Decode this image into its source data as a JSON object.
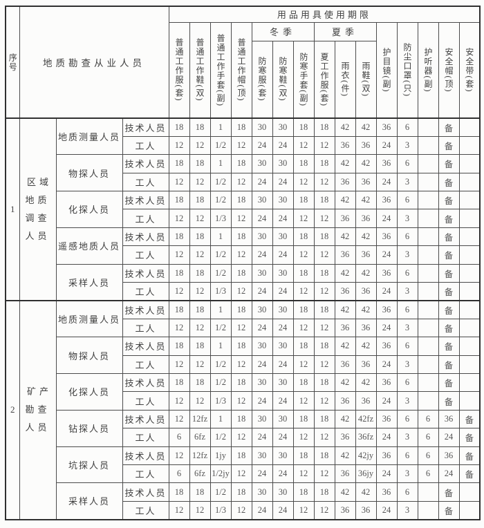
{
  "table": {
    "header": {
      "serial": "序号",
      "personnel": "地质勘查从业人员",
      "usage_title": "用品用具使用期限",
      "plain_left_cols": [
        "普通工作服(套)",
        "普通工作鞋(双)",
        "普通工作手套(副)",
        "普通工作帽(顶)"
      ],
      "winter": {
        "label": "冬季",
        "cols": [
          "防寒服(套)",
          "防寒鞋(双)",
          "防寒手套(副)"
        ]
      },
      "summer": {
        "label": "夏季",
        "cols": [
          "夏工作服(套)",
          "雨衣(件)",
          "雨鞋(双)"
        ]
      },
      "plain_right_cols": [
        "护目镜(副)",
        "防尘口罩(只)",
        "护听器(副)",
        "安全帽(顶)",
        "安全带(套)"
      ]
    },
    "colors": {
      "line": "#4a4a4a",
      "outer_line": "#2f2f2f",
      "paper": "#fcfcfb",
      "text": "#3f3f3f"
    },
    "sections": [
      {
        "no": "1",
        "group": "区域\n地质\n调查\n人员",
        "subcategories": [
          {
            "name": "地质测量人员",
            "rows": [
              {
                "type": "技术人员",
                "values": [
                  "18",
                  "18",
                  "1",
                  "18",
                  "30",
                  "30",
                  "18",
                  "18",
                  "42",
                  "42",
                  "36",
                  "6",
                  "",
                  "备",
                  ""
                ]
              },
              {
                "type": "工人",
                "values": [
                  "12",
                  "12",
                  "1/2",
                  "12",
                  "24",
                  "24",
                  "12",
                  "12",
                  "36",
                  "36",
                  "24",
                  "3",
                  "",
                  "备",
                  ""
                ]
              }
            ]
          },
          {
            "name": "物探人员",
            "rows": [
              {
                "type": "技术人员",
                "values": [
                  "18",
                  "18",
                  "1",
                  "18",
                  "30",
                  "30",
                  "18",
                  "18",
                  "42",
                  "42",
                  "36",
                  "6",
                  "",
                  "备",
                  ""
                ]
              },
              {
                "type": "工人",
                "values": [
                  "12",
                  "12",
                  "1/2",
                  "12",
                  "24",
                  "24",
                  "12",
                  "12",
                  "36",
                  "36",
                  "24",
                  "3",
                  "",
                  "备",
                  ""
                ]
              }
            ]
          },
          {
            "name": "化探人员",
            "rows": [
              {
                "type": "技术人员",
                "values": [
                  "18",
                  "18",
                  "1/2",
                  "18",
                  "30",
                  "30",
                  "18",
                  "18",
                  "42",
                  "42",
                  "36",
                  "6",
                  "",
                  "备",
                  ""
                ]
              },
              {
                "type": "工人",
                "values": [
                  "12",
                  "12",
                  "1/3",
                  "12",
                  "24",
                  "24",
                  "12",
                  "12",
                  "36",
                  "36",
                  "24",
                  "3",
                  "",
                  "备",
                  ""
                ]
              }
            ]
          },
          {
            "name": "遥感地质人员",
            "rows": [
              {
                "type": "技术人员",
                "values": [
                  "18",
                  "18",
                  "1",
                  "18",
                  "30",
                  "30",
                  "18",
                  "18",
                  "42",
                  "42",
                  "36",
                  "6",
                  "",
                  "备",
                  ""
                ]
              },
              {
                "type": "工人",
                "values": [
                  "12",
                  "12",
                  "1/2",
                  "12",
                  "24",
                  "24",
                  "12",
                  "12",
                  "36",
                  "36",
                  "24",
                  "3",
                  "",
                  "备",
                  ""
                ]
              }
            ]
          },
          {
            "name": "采样人员",
            "rows": [
              {
                "type": "技术人员",
                "values": [
                  "18",
                  "18",
                  "1/2",
                  "18",
                  "30",
                  "30",
                  "18",
                  "18",
                  "42",
                  "42",
                  "36",
                  "6",
                  "",
                  "备",
                  ""
                ]
              },
              {
                "type": "工人",
                "values": [
                  "12",
                  "12",
                  "1/3",
                  "12",
                  "24",
                  "24",
                  "12",
                  "12",
                  "36",
                  "36",
                  "24",
                  "3",
                  "",
                  "备",
                  ""
                ]
              }
            ]
          }
        ]
      },
      {
        "no": "2",
        "group": "矿产\n勘查\n人员",
        "subcategories": [
          {
            "name": "地质测量人员",
            "rows": [
              {
                "type": "技术人员",
                "values": [
                  "18",
                  "18",
                  "1",
                  "18",
                  "30",
                  "30",
                  "18",
                  "18",
                  "42",
                  "42",
                  "36",
                  "6",
                  "",
                  "备",
                  ""
                ]
              },
              {
                "type": "工人",
                "values": [
                  "12",
                  "12",
                  "1/2",
                  "12",
                  "24",
                  "24",
                  "12",
                  "12",
                  "36",
                  "36",
                  "24",
                  "3",
                  "",
                  "备",
                  ""
                ]
              }
            ]
          },
          {
            "name": "物探人员",
            "rows": [
              {
                "type": "技术人员",
                "values": [
                  "18",
                  "18",
                  "1",
                  "18",
                  "30",
                  "30",
                  "18",
                  "18",
                  "42",
                  "42",
                  "36",
                  "6",
                  "",
                  "备",
                  ""
                ]
              },
              {
                "type": "工人",
                "values": [
                  "12",
                  "12",
                  "1/2",
                  "12",
                  "24",
                  "24",
                  "12",
                  "12",
                  "36",
                  "36",
                  "24",
                  "3",
                  "",
                  "备",
                  ""
                ]
              }
            ]
          },
          {
            "name": "化探人员",
            "rows": [
              {
                "type": "技术人员",
                "values": [
                  "18",
                  "18",
                  "1/2",
                  "18",
                  "30",
                  "30",
                  "18",
                  "18",
                  "42",
                  "42",
                  "36",
                  "6",
                  "",
                  "备",
                  ""
                ]
              },
              {
                "type": "工人",
                "values": [
                  "12",
                  "12",
                  "1/3",
                  "12",
                  "24",
                  "24",
                  "12",
                  "12",
                  "36",
                  "36",
                  "24",
                  "3",
                  "",
                  "备",
                  ""
                ]
              }
            ]
          },
          {
            "name": "钻探人员",
            "rows": [
              {
                "type": "技术人员",
                "values": [
                  "12",
                  "12fz",
                  "1",
                  "18",
                  "30",
                  "30",
                  "18",
                  "18",
                  "42",
                  "42fz",
                  "36",
                  "6",
                  "6",
                  "36",
                  "备"
                ]
              },
              {
                "type": "工人",
                "values": [
                  "6",
                  "6fz",
                  "1/2",
                  "12",
                  "24",
                  "24",
                  "12",
                  "12",
                  "36",
                  "36fz",
                  "24",
                  "3",
                  "6",
                  "24",
                  "备"
                ]
              }
            ]
          },
          {
            "name": "坑探人员",
            "rows": [
              {
                "type": "技术人员",
                "values": [
                  "12",
                  "12fz",
                  "1jy",
                  "18",
                  "30",
                  "30",
                  "18",
                  "18",
                  "42",
                  "42jy",
                  "36",
                  "6",
                  "6",
                  "36",
                  "备"
                ]
              },
              {
                "type": "工人",
                "values": [
                  "6",
                  "6fz",
                  "1/2jy",
                  "12",
                  "24",
                  "24",
                  "12",
                  "12",
                  "36",
                  "36jy",
                  "24",
                  "3",
                  "6",
                  "24",
                  "备"
                ]
              }
            ]
          },
          {
            "name": "采样人员",
            "rows": [
              {
                "type": "技术人员",
                "values": [
                  "18",
                  "18",
                  "1/2",
                  "18",
                  "30",
                  "30",
                  "18",
                  "18",
                  "42",
                  "42",
                  "36",
                  "6",
                  "",
                  "备",
                  ""
                ]
              },
              {
                "type": "工人",
                "values": [
                  "12",
                  "12",
                  "1/3",
                  "12",
                  "24",
                  "24",
                  "12",
                  "12",
                  "36",
                  "36",
                  "24",
                  "3",
                  "",
                  "备",
                  ""
                ]
              }
            ]
          }
        ]
      }
    ]
  }
}
